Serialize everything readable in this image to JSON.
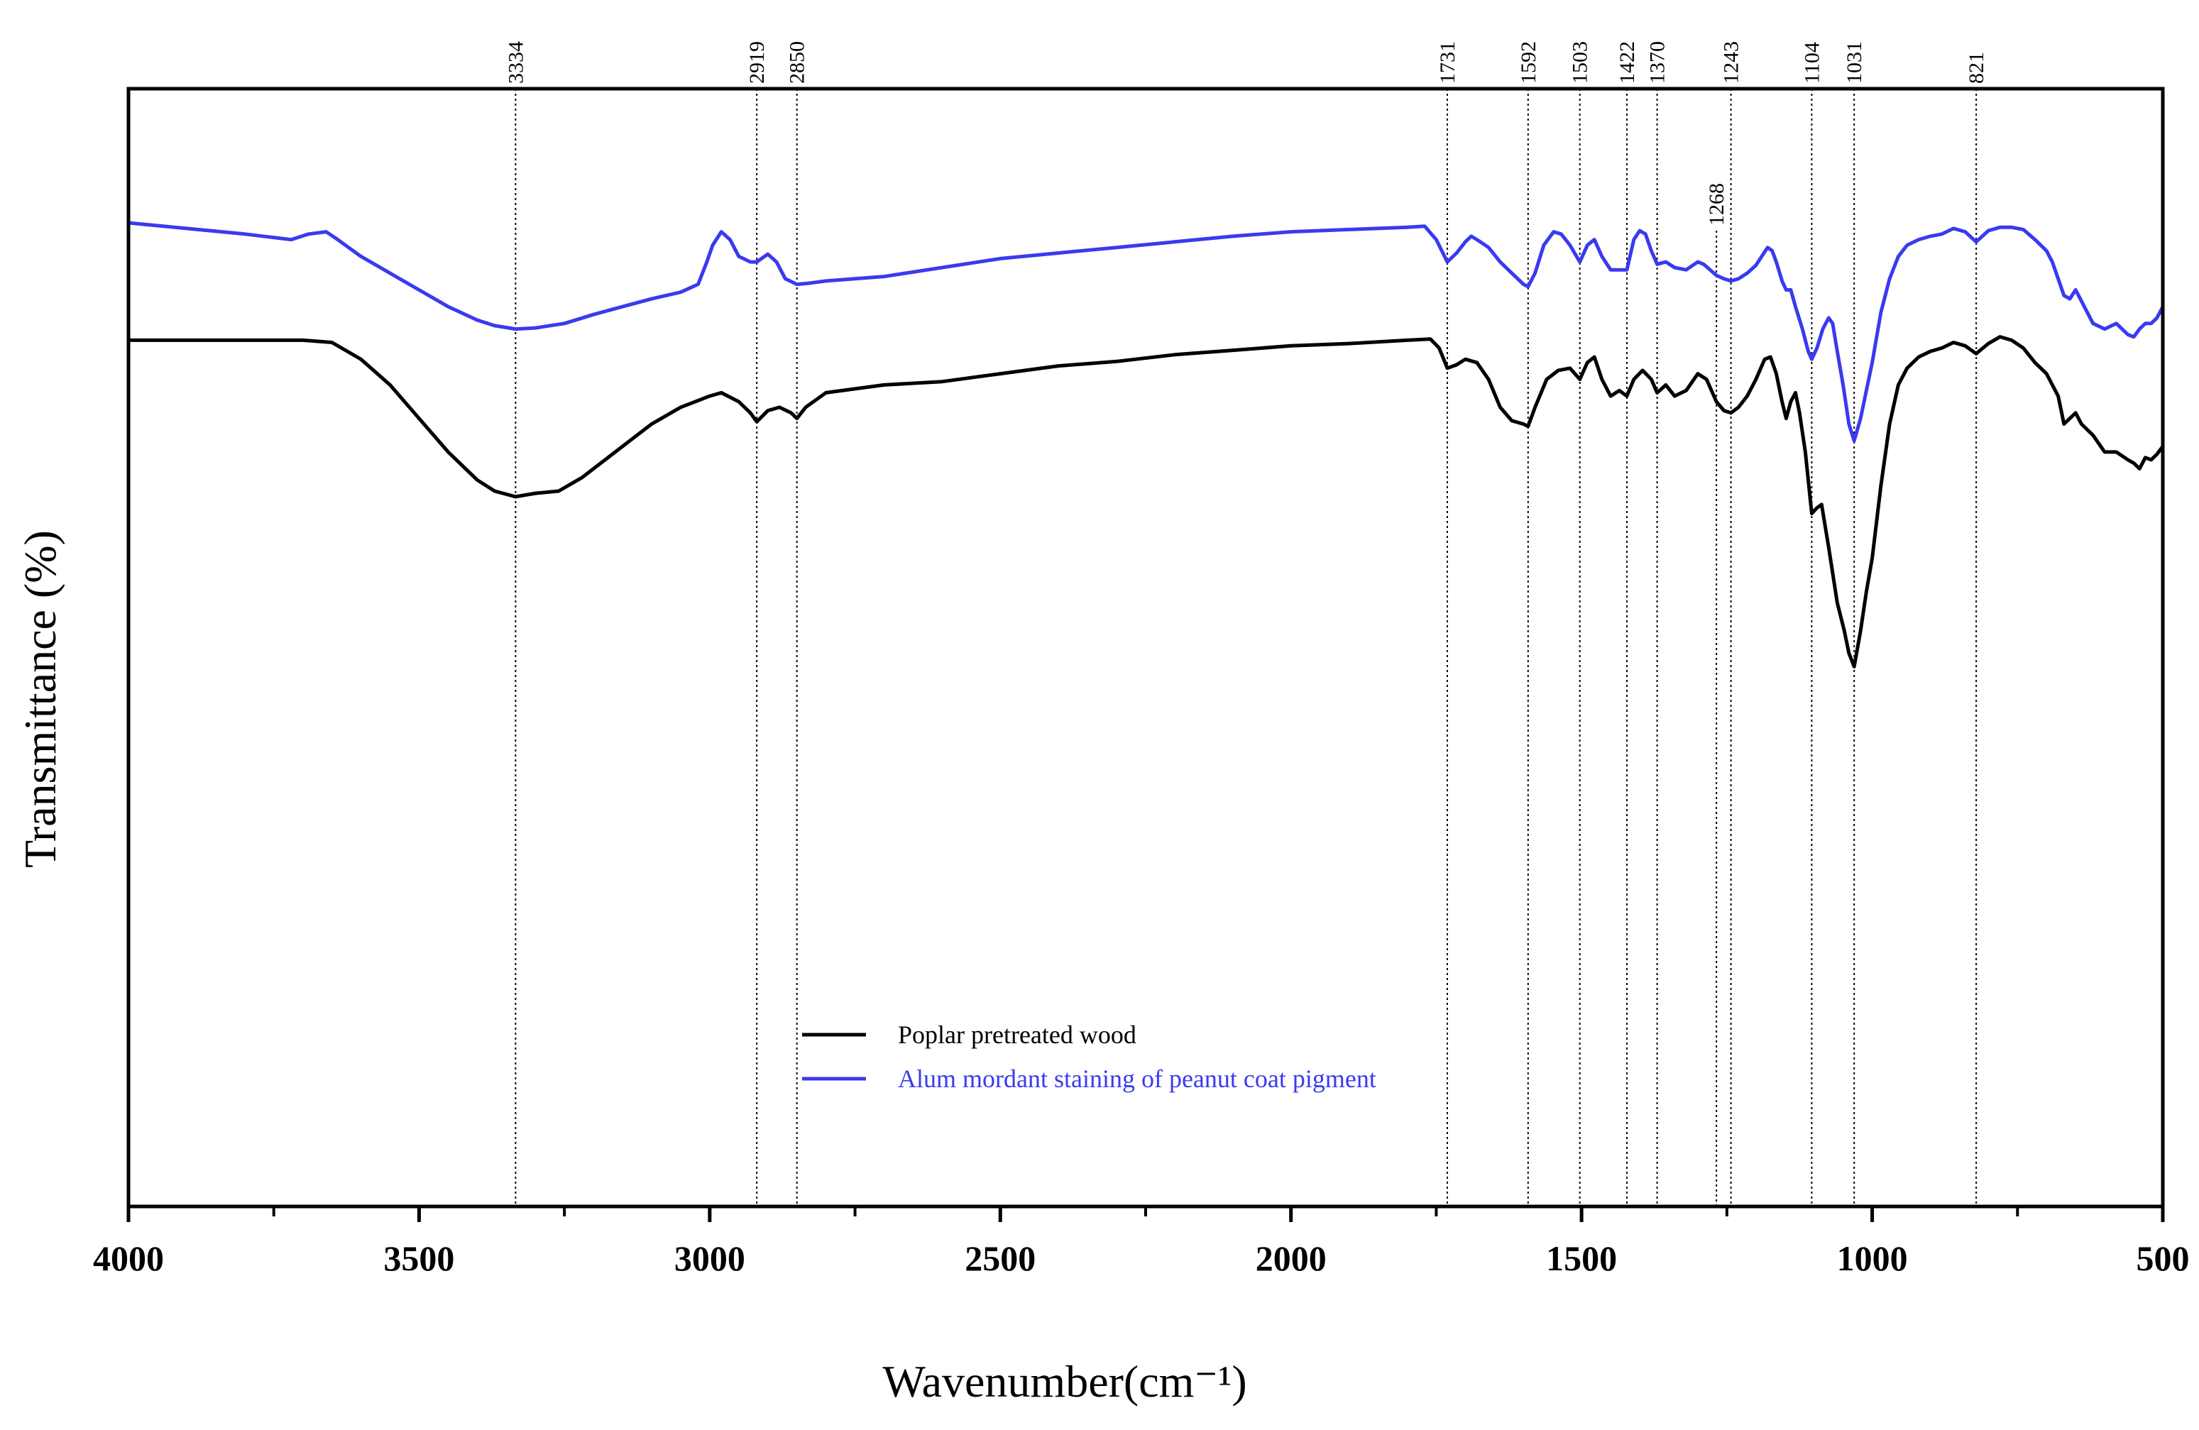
{
  "chart_data": {
    "type": "line",
    "title": "",
    "xlabel": "Wavenumber(cm⁻¹)",
    "ylabel": "Transmittance (%)",
    "xlim": [
      4000,
      500
    ],
    "ylim": [
      0,
      100
    ],
    "x_ticks": [
      4000,
      3500,
      3000,
      2500,
      2000,
      1500,
      1000,
      500
    ],
    "x_tick_labels": [
      "4000",
      "3500",
      "3000",
      "2500",
      "2000",
      "1500",
      "1000",
      "500"
    ],
    "y_ticks_shown": false,
    "grid": false,
    "legend_position": "bottom-center",
    "colors": {
      "poplar": "#000000",
      "alum": "#3a3af0",
      "axis": "#000000",
      "guides": "#000000"
    },
    "peak_lines": [
      {
        "x": 3334,
        "label": "3334"
      },
      {
        "x": 2919,
        "label": "2919"
      },
      {
        "x": 2850,
        "label": "2850"
      },
      {
        "x": 1731,
        "label": "1731"
      },
      {
        "x": 1592,
        "label": "1592"
      },
      {
        "x": 1503,
        "label": "1503"
      },
      {
        "x": 1422,
        "label": "1422"
      },
      {
        "x": 1370,
        "label": "1370"
      },
      {
        "x": 1268,
        "label": "1268",
        "low": true
      },
      {
        "x": 1243,
        "label": "1243"
      },
      {
        "x": 1104,
        "label": "1104"
      },
      {
        "x": 1031,
        "label": "1031"
      },
      {
        "x": 821,
        "label": "821"
      }
    ],
    "series": [
      {
        "name": "Poplar pretreated wood",
        "color": "#000000",
        "points": [
          [
            4000,
            77.5
          ],
          [
            3900,
            77.5
          ],
          [
            3800,
            77.5
          ],
          [
            3700,
            77.5
          ],
          [
            3650,
            77.3
          ],
          [
            3600,
            75.8
          ],
          [
            3550,
            73.5
          ],
          [
            3500,
            70.5
          ],
          [
            3450,
            67.5
          ],
          [
            3400,
            65.0
          ],
          [
            3370,
            64.0
          ],
          [
            3334,
            63.5
          ],
          [
            3300,
            63.8
          ],
          [
            3260,
            64.0
          ],
          [
            3220,
            65.2
          ],
          [
            3200,
            66.0
          ],
          [
            3150,
            68.0
          ],
          [
            3100,
            70.0
          ],
          [
            3050,
            71.5
          ],
          [
            3000,
            72.5
          ],
          [
            2980,
            72.8
          ],
          [
            2950,
            72.0
          ],
          [
            2930,
            71.0
          ],
          [
            2919,
            70.2
          ],
          [
            2900,
            71.2
          ],
          [
            2880,
            71.5
          ],
          [
            2860,
            71.0
          ],
          [
            2850,
            70.5
          ],
          [
            2835,
            71.5
          ],
          [
            2800,
            72.8
          ],
          [
            2700,
            73.5
          ],
          [
            2600,
            73.8
          ],
          [
            2500,
            74.5
          ],
          [
            2400,
            75.2
          ],
          [
            2300,
            75.6
          ],
          [
            2200,
            76.2
          ],
          [
            2100,
            76.6
          ],
          [
            2000,
            77.0
          ],
          [
            1900,
            77.2
          ],
          [
            1800,
            77.5
          ],
          [
            1760,
            77.6
          ],
          [
            1745,
            76.8
          ],
          [
            1731,
            75.0
          ],
          [
            1715,
            75.3
          ],
          [
            1700,
            75.8
          ],
          [
            1680,
            75.5
          ],
          [
            1660,
            74.0
          ],
          [
            1640,
            71.5
          ],
          [
            1620,
            70.3
          ],
          [
            1600,
            70.0
          ],
          [
            1592,
            69.8
          ],
          [
            1580,
            71.5
          ],
          [
            1560,
            74.0
          ],
          [
            1540,
            74.8
          ],
          [
            1520,
            75.0
          ],
          [
            1503,
            74.0
          ],
          [
            1490,
            75.5
          ],
          [
            1478,
            76.0
          ],
          [
            1465,
            74.0
          ],
          [
            1450,
            72.5
          ],
          [
            1435,
            73.0
          ],
          [
            1422,
            72.5
          ],
          [
            1410,
            74.0
          ],
          [
            1395,
            74.8
          ],
          [
            1380,
            74.0
          ],
          [
            1370,
            72.8
          ],
          [
            1355,
            73.5
          ],
          [
            1340,
            72.5
          ],
          [
            1320,
            73.0
          ],
          [
            1300,
            74.5
          ],
          [
            1285,
            74.0
          ],
          [
            1268,
            72.0
          ],
          [
            1255,
            71.2
          ],
          [
            1243,
            71.0
          ],
          [
            1230,
            71.5
          ],
          [
            1215,
            72.5
          ],
          [
            1200,
            74.0
          ],
          [
            1185,
            75.8
          ],
          [
            1175,
            76.0
          ],
          [
            1165,
            74.5
          ],
          [
            1155,
            72.0
          ],
          [
            1148,
            70.5
          ],
          [
            1140,
            72.0
          ],
          [
            1132,
            72.8
          ],
          [
            1125,
            71.0
          ],
          [
            1115,
            67.5
          ],
          [
            1104,
            62.0
          ],
          [
            1095,
            62.5
          ],
          [
            1087,
            62.8
          ],
          [
            1075,
            59.0
          ],
          [
            1060,
            54.0
          ],
          [
            1048,
            51.5
          ],
          [
            1040,
            49.5
          ],
          [
            1031,
            48.3
          ],
          [
            1020,
            51.5
          ],
          [
            1010,
            55.0
          ],
          [
            1000,
            58.0
          ],
          [
            985,
            64.5
          ],
          [
            970,
            70.0
          ],
          [
            955,
            73.5
          ],
          [
            940,
            75.0
          ],
          [
            920,
            76.0
          ],
          [
            900,
            76.5
          ],
          [
            880,
            76.8
          ],
          [
            860,
            77.3
          ],
          [
            840,
            77.0
          ],
          [
            821,
            76.3
          ],
          [
            800,
            77.2
          ],
          [
            780,
            77.8
          ],
          [
            760,
            77.5
          ],
          [
            740,
            76.8
          ],
          [
            720,
            75.5
          ],
          [
            700,
            74.5
          ],
          [
            680,
            72.5
          ],
          [
            670,
            70.0
          ],
          [
            660,
            70.5
          ],
          [
            650,
            71.0
          ],
          [
            640,
            70.0
          ],
          [
            620,
            69.0
          ],
          [
            600,
            67.5
          ],
          [
            580,
            67.5
          ],
          [
            560,
            66.8
          ],
          [
            550,
            66.5
          ],
          [
            540,
            66.0
          ],
          [
            530,
            67.0
          ],
          [
            520,
            66.8
          ],
          [
            510,
            67.3
          ],
          [
            500,
            68.0
          ]
        ]
      },
      {
        "name": "Alum mordant staining of peanut coat pigment",
        "color": "#3a3af0",
        "points": [
          [
            4000,
            88.0
          ],
          [
            3900,
            87.5
          ],
          [
            3800,
            87.0
          ],
          [
            3720,
            86.5
          ],
          [
            3690,
            87.0
          ],
          [
            3660,
            87.2
          ],
          [
            3640,
            86.5
          ],
          [
            3600,
            85.0
          ],
          [
            3550,
            83.5
          ],
          [
            3500,
            82.0
          ],
          [
            3450,
            80.5
          ],
          [
            3400,
            79.3
          ],
          [
            3370,
            78.8
          ],
          [
            3334,
            78.5
          ],
          [
            3300,
            78.6
          ],
          [
            3250,
            79.0
          ],
          [
            3200,
            79.8
          ],
          [
            3150,
            80.5
          ],
          [
            3100,
            81.2
          ],
          [
            3050,
            81.8
          ],
          [
            3020,
            82.5
          ],
          [
            3005,
            84.5
          ],
          [
            2995,
            86.0
          ],
          [
            2980,
            87.2
          ],
          [
            2965,
            86.5
          ],
          [
            2950,
            85.0
          ],
          [
            2930,
            84.5
          ],
          [
            2919,
            84.5
          ],
          [
            2900,
            85.2
          ],
          [
            2885,
            84.5
          ],
          [
            2870,
            83.0
          ],
          [
            2850,
            82.5
          ],
          [
            2830,
            82.6
          ],
          [
            2800,
            82.8
          ],
          [
            2700,
            83.2
          ],
          [
            2600,
            84.0
          ],
          [
            2500,
            84.8
          ],
          [
            2400,
            85.3
          ],
          [
            2300,
            85.8
          ],
          [
            2200,
            86.3
          ],
          [
            2100,
            86.8
          ],
          [
            2000,
            87.2
          ],
          [
            1900,
            87.4
          ],
          [
            1800,
            87.6
          ],
          [
            1770,
            87.7
          ],
          [
            1750,
            86.5
          ],
          [
            1731,
            84.5
          ],
          [
            1715,
            85.3
          ],
          [
            1700,
            86.3
          ],
          [
            1690,
            86.8
          ],
          [
            1680,
            86.5
          ],
          [
            1660,
            85.8
          ],
          [
            1640,
            84.5
          ],
          [
            1620,
            83.5
          ],
          [
            1600,
            82.5
          ],
          [
            1592,
            82.3
          ],
          [
            1580,
            83.5
          ],
          [
            1565,
            86.0
          ],
          [
            1548,
            87.2
          ],
          [
            1535,
            87.0
          ],
          [
            1520,
            86.0
          ],
          [
            1503,
            84.5
          ],
          [
            1490,
            86.0
          ],
          [
            1478,
            86.5
          ],
          [
            1465,
            85.0
          ],
          [
            1450,
            83.8
          ],
          [
            1435,
            83.8
          ],
          [
            1422,
            83.8
          ],
          [
            1410,
            86.5
          ],
          [
            1400,
            87.3
          ],
          [
            1390,
            87.0
          ],
          [
            1380,
            85.5
          ],
          [
            1370,
            84.3
          ],
          [
            1355,
            84.5
          ],
          [
            1340,
            84.0
          ],
          [
            1320,
            83.8
          ],
          [
            1300,
            84.5
          ],
          [
            1290,
            84.3
          ],
          [
            1268,
            83.3
          ],
          [
            1255,
            83.0
          ],
          [
            1243,
            82.8
          ],
          [
            1230,
            83.0
          ],
          [
            1215,
            83.5
          ],
          [
            1200,
            84.2
          ],
          [
            1190,
            85.0
          ],
          [
            1180,
            85.8
          ],
          [
            1172,
            85.5
          ],
          [
            1165,
            84.5
          ],
          [
            1155,
            82.8
          ],
          [
            1148,
            82.0
          ],
          [
            1140,
            82.0
          ],
          [
            1132,
            80.5
          ],
          [
            1120,
            78.5
          ],
          [
            1110,
            76.5
          ],
          [
            1104,
            75.8
          ],
          [
            1095,
            76.8
          ],
          [
            1085,
            78.5
          ],
          [
            1075,
            79.5
          ],
          [
            1068,
            79.0
          ],
          [
            1060,
            76.5
          ],
          [
            1050,
            73.5
          ],
          [
            1040,
            70.0
          ],
          [
            1031,
            68.5
          ],
          [
            1020,
            70.5
          ],
          [
            1010,
            73.0
          ],
          [
            1000,
            75.5
          ],
          [
            985,
            80.0
          ],
          [
            970,
            83.0
          ],
          [
            955,
            85.0
          ],
          [
            940,
            86.0
          ],
          [
            920,
            86.5
          ],
          [
            900,
            86.8
          ],
          [
            880,
            87.0
          ],
          [
            860,
            87.5
          ],
          [
            840,
            87.2
          ],
          [
            821,
            86.3
          ],
          [
            800,
            87.3
          ],
          [
            780,
            87.6
          ],
          [
            760,
            87.6
          ],
          [
            740,
            87.4
          ],
          [
            720,
            86.5
          ],
          [
            700,
            85.5
          ],
          [
            690,
            84.5
          ],
          [
            680,
            83.0
          ],
          [
            670,
            81.5
          ],
          [
            660,
            81.2
          ],
          [
            650,
            82.0
          ],
          [
            640,
            81.0
          ],
          [
            620,
            79.0
          ],
          [
            600,
            78.5
          ],
          [
            580,
            79.0
          ],
          [
            560,
            78.0
          ],
          [
            550,
            77.8
          ],
          [
            540,
            78.5
          ],
          [
            530,
            79.0
          ],
          [
            520,
            79.0
          ],
          [
            510,
            79.5
          ],
          [
            500,
            80.5
          ]
        ]
      }
    ]
  }
}
